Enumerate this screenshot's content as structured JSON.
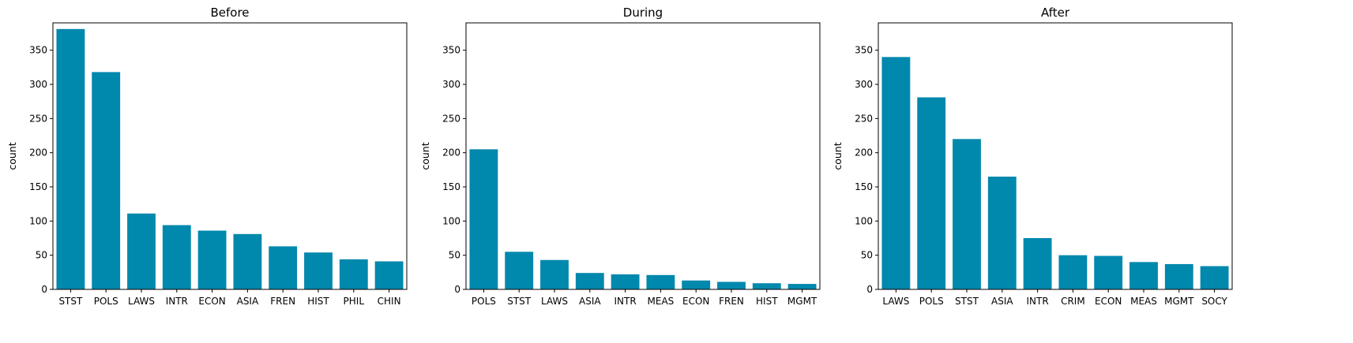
{
  "colors": {
    "bar": "#0088ad",
    "axis": "#000000",
    "background": "#ffffff"
  },
  "chart_data": [
    {
      "type": "bar",
      "title": "Before",
      "xlabel": "",
      "ylabel": "count",
      "ylim": [
        0,
        390
      ],
      "yticks": [
        0,
        50,
        100,
        150,
        200,
        250,
        300,
        350
      ],
      "grid": false,
      "categories": [
        "STST",
        "POLS",
        "LAWS",
        "INTR",
        "ECON",
        "ASIA",
        "FREN",
        "HIST",
        "PHIL",
        "CHIN"
      ],
      "values": [
        381,
        318,
        111,
        94,
        86,
        81,
        63,
        54,
        44,
        41
      ]
    },
    {
      "type": "bar",
      "title": "During",
      "xlabel": "",
      "ylabel": "count",
      "ylim": [
        0,
        390
      ],
      "yticks": [
        0,
        50,
        100,
        150,
        200,
        250,
        300,
        350
      ],
      "grid": false,
      "categories": [
        "POLS",
        "STST",
        "LAWS",
        "ASIA",
        "INTR",
        "MEAS",
        "ECON",
        "FREN",
        "HIST",
        "MGMT"
      ],
      "values": [
        205,
        55,
        43,
        24,
        22,
        21,
        13,
        11,
        9,
        8
      ]
    },
    {
      "type": "bar",
      "title": "After",
      "xlabel": "",
      "ylabel": "count",
      "ylim": [
        0,
        390
      ],
      "yticks": [
        0,
        50,
        100,
        150,
        200,
        250,
        300,
        350
      ],
      "grid": false,
      "categories": [
        "LAWS",
        "POLS",
        "STST",
        "ASIA",
        "INTR",
        "CRIM",
        "ECON",
        "MEAS",
        "MGMT",
        "SOCY"
      ],
      "values": [
        340,
        281,
        220,
        165,
        75,
        50,
        49,
        40,
        37,
        34
      ]
    }
  ]
}
